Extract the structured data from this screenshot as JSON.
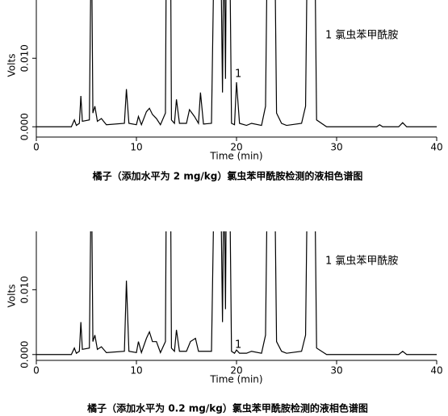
{
  "chart_data": [
    {
      "type": "line",
      "x_label": "Time (min)",
      "y_label": "Volts",
      "caption": "橘子（添加水平为 2 mg/kg）氯虫苯甲酰胺检测的液相色谱图",
      "annotations": [
        "1 氯虫苯甲酰胺",
        "1"
      ],
      "xlim": [
        0,
        40
      ],
      "xticks": [
        0,
        10,
        20,
        30,
        40
      ],
      "ylim": [
        -0.0015,
        0.0185
      ],
      "yticks": [
        {
          "value": 0,
          "label": "0.000"
        },
        {
          "value": 0.01,
          "label": "0.010"
        }
      ],
      "series": [
        {
          "color": "#000000",
          "x": [
            0,
            3.5,
            3.8,
            4.0,
            4.3,
            4.45,
            4.6,
            5.3,
            5.5,
            5.65,
            5.85,
            6.1,
            6.5,
            7.0,
            8.8,
            9.0,
            9.25,
            10.0,
            10.2,
            10.5,
            11.0,
            11.3,
            11.6,
            12.0,
            12.4,
            12.9,
            13.0,
            13.4,
            13.5,
            13.8,
            14.0,
            14.3,
            15.0,
            15.3,
            15.8,
            16.2,
            16.4,
            16.7,
            17.5,
            17.8,
            18.4,
            18.6,
            18.75,
            18.9,
            19.0,
            19.3,
            19.5,
            19.8,
            20.0,
            20.3,
            21.0,
            21.5,
            22.5,
            22.9,
            23.1,
            23.8,
            24.0,
            24.5,
            25.0,
            26.5,
            26.9,
            27.1,
            27.8,
            28.0,
            29.0,
            34.0,
            34.3,
            34.6,
            36.2,
            36.6,
            37.0,
            40
          ],
          "values": [
            0,
            0,
            0.001,
            0.0002,
            0.0005,
            0.0045,
            0.0008,
            0.001,
            0.03,
            0.002,
            0.003,
            0.0008,
            0.0012,
            0.0003,
            0.0005,
            0.0055,
            0.0005,
            0.0003,
            0.0015,
            0.0003,
            0.0022,
            0.0027,
            0.0018,
            0.0012,
            0.0003,
            0.002,
            0.03,
            0.03,
            0.001,
            0.0005,
            0.004,
            0.0005,
            0.0005,
            0.0025,
            0.0015,
            0.0005,
            0.005,
            0.0004,
            0.0005,
            0.03,
            0.03,
            0.005,
            0.03,
            0.007,
            0.03,
            0.03,
            0.0005,
            0.0003,
            0.0065,
            0.0005,
            0.0002,
            0.0005,
            0.0002,
            0.003,
            0.03,
            0.03,
            0.002,
            0.0005,
            0.0002,
            0.0005,
            0.003,
            0.03,
            0.03,
            0.001,
            0,
            0,
            0.0003,
            0,
            0,
            0.0006,
            0,
            0
          ]
        }
      ]
    },
    {
      "type": "line",
      "x_label": "Time (min)",
      "y_label": "Volts",
      "caption": "橘子（添加水平为 0.2 mg/kg）氯虫苯甲酰胺检测的液相色谱图",
      "annotations": [
        "1 氯虫苯甲酰胺",
        "1"
      ],
      "xlim": [
        0,
        40
      ],
      "xticks": [
        0,
        10,
        20,
        30,
        40
      ],
      "ylim": [
        -0.0009,
        0.019
      ],
      "yticks": [
        {
          "value": 0,
          "label": "0.000"
        },
        {
          "value": 0.01,
          "label": "0.010"
        }
      ],
      "series": [
        {
          "color": "#000000",
          "x": [
            0,
            3.5,
            3.8,
            4.0,
            4.3,
            4.45,
            4.6,
            5.3,
            5.5,
            5.65,
            5.85,
            6.1,
            6.5,
            7.0,
            8.8,
            9.0,
            9.25,
            10.0,
            10.2,
            10.5,
            11.0,
            11.3,
            11.6,
            12.0,
            12.4,
            12.9,
            13.0,
            13.4,
            13.5,
            13.8,
            14.0,
            14.3,
            15.0,
            15.4,
            15.9,
            16.2,
            17.5,
            17.8,
            18.4,
            18.6,
            18.75,
            18.9,
            19.0,
            19.3,
            19.5,
            19.8,
            20.0,
            20.3,
            21.0,
            21.5,
            22.5,
            22.9,
            23.1,
            23.8,
            24.0,
            24.5,
            25.0,
            26.5,
            26.9,
            27.1,
            27.8,
            28.0,
            29.0,
            36.2,
            36.6,
            37.0,
            40
          ],
          "values": [
            0,
            0,
            0.001,
            0.0002,
            0.0005,
            0.005,
            0.0008,
            0.001,
            0.03,
            0.002,
            0.003,
            0.0008,
            0.0012,
            0.0003,
            0.0005,
            0.0114,
            0.0005,
            0.0003,
            0.002,
            0.0003,
            0.0025,
            0.0035,
            0.002,
            0.002,
            0.0003,
            0.002,
            0.03,
            0.03,
            0.001,
            0.0005,
            0.0038,
            0.0005,
            0.0005,
            0.002,
            0.0025,
            0.0005,
            0.0005,
            0.03,
            0.03,
            0.005,
            0.03,
            0.007,
            0.03,
            0.03,
            0.0005,
            0.0002,
            0.0007,
            0.0002,
            0.0002,
            0.0005,
            0.0002,
            0.003,
            0.03,
            0.03,
            0.002,
            0.0005,
            0.0002,
            0.0005,
            0.003,
            0.03,
            0.03,
            0.001,
            0,
            0,
            0.0005,
            0,
            0
          ]
        }
      ]
    }
  ]
}
